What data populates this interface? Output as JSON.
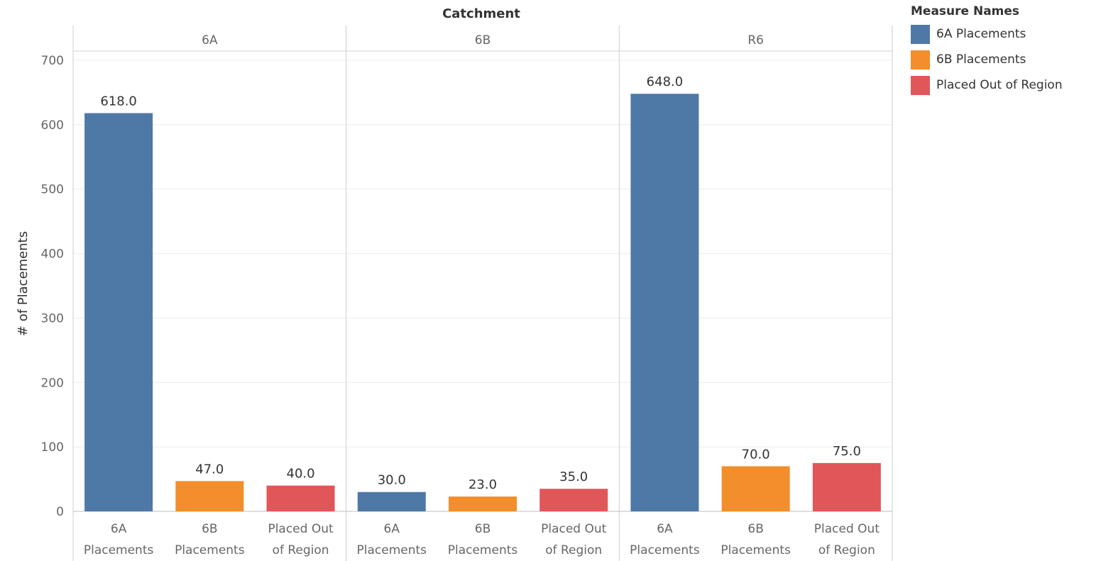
{
  "chart_data": {
    "type": "bar",
    "column_header_title": "Catchment",
    "panels": [
      "6A",
      "6B",
      "R6"
    ],
    "categories": [
      "6A Placements",
      "6B Placements",
      "Placed Out of Region"
    ],
    "category_tick_lines": [
      [
        "6A",
        "Placements"
      ],
      [
        "6B",
        "Placements"
      ],
      [
        "Placed Out",
        "of Region"
      ]
    ],
    "values": [
      [
        618,
        47,
        40
      ],
      [
        30,
        23,
        35
      ],
      [
        648,
        70,
        75
      ]
    ],
    "value_labels": [
      [
        "618.0",
        "47.0",
        "40.0"
      ],
      [
        "30.0",
        "23.0",
        "35.0"
      ],
      [
        "648.0",
        "70.0",
        "75.0"
      ]
    ],
    "ylabel": "# of Placements",
    "ylim": [
      0,
      700
    ],
    "yticks": [
      0,
      100,
      200,
      300,
      400,
      500,
      600,
      700
    ],
    "grid": true,
    "legend": {
      "title": "Measure Names",
      "placement": "right",
      "items": [
        "6A Placements",
        "6B Placements",
        "Placed Out of Region"
      ]
    },
    "colors": [
      "#4e79a7",
      "#f28e2b",
      "#e15759"
    ]
  }
}
